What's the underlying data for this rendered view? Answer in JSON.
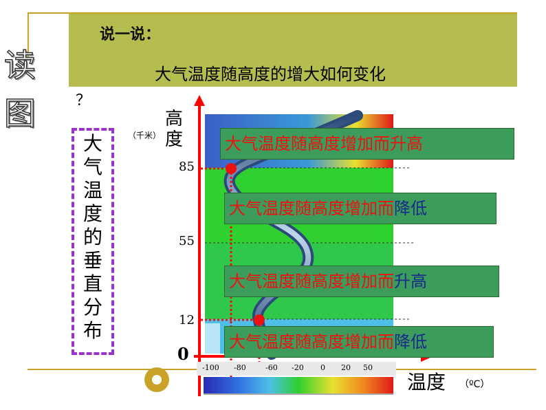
{
  "slide": {
    "side_title": "读图",
    "title_label": "说一说：",
    "question": "大气温度随高度的增大如何变化",
    "question_mark": "？",
    "vertical_label": "大气温度的垂直分布"
  },
  "diagram": {
    "height_axis_label": "高度",
    "height_unit": "（千米）",
    "temp_axis_label": "温度",
    "temp_unit": "（ºC）",
    "origin_label": "0",
    "height_ticks": [
      {
        "value": 85,
        "label": "85"
      },
      {
        "value": 55,
        "label": "55"
      },
      {
        "value": 12,
        "label": "12"
      }
    ],
    "temp_scale_labels": [
      "-100",
      "-80",
      "-60",
      "-20",
      "0",
      "20",
      "50"
    ],
    "layers": [
      {
        "prefix": "大气温度随高度增加而",
        "trend": "升高"
      },
      {
        "prefix": "大气温度随高度增加而",
        "trend": "降低"
      },
      {
        "prefix": "大气温度随高度增加而",
        "trend": "升高"
      },
      {
        "prefix": "大气温度随高度增加而",
        "trend": "降低"
      }
    ],
    "colors": {
      "axis": "#ff0000",
      "layer_label_bg": "#3c9c5c",
      "upper_band": "#3a7fd5",
      "middle_band": "#2fd02f",
      "lower_band": "#4ec0e8",
      "curve": "#2b4a7a",
      "marker": "#ee1111"
    }
  }
}
